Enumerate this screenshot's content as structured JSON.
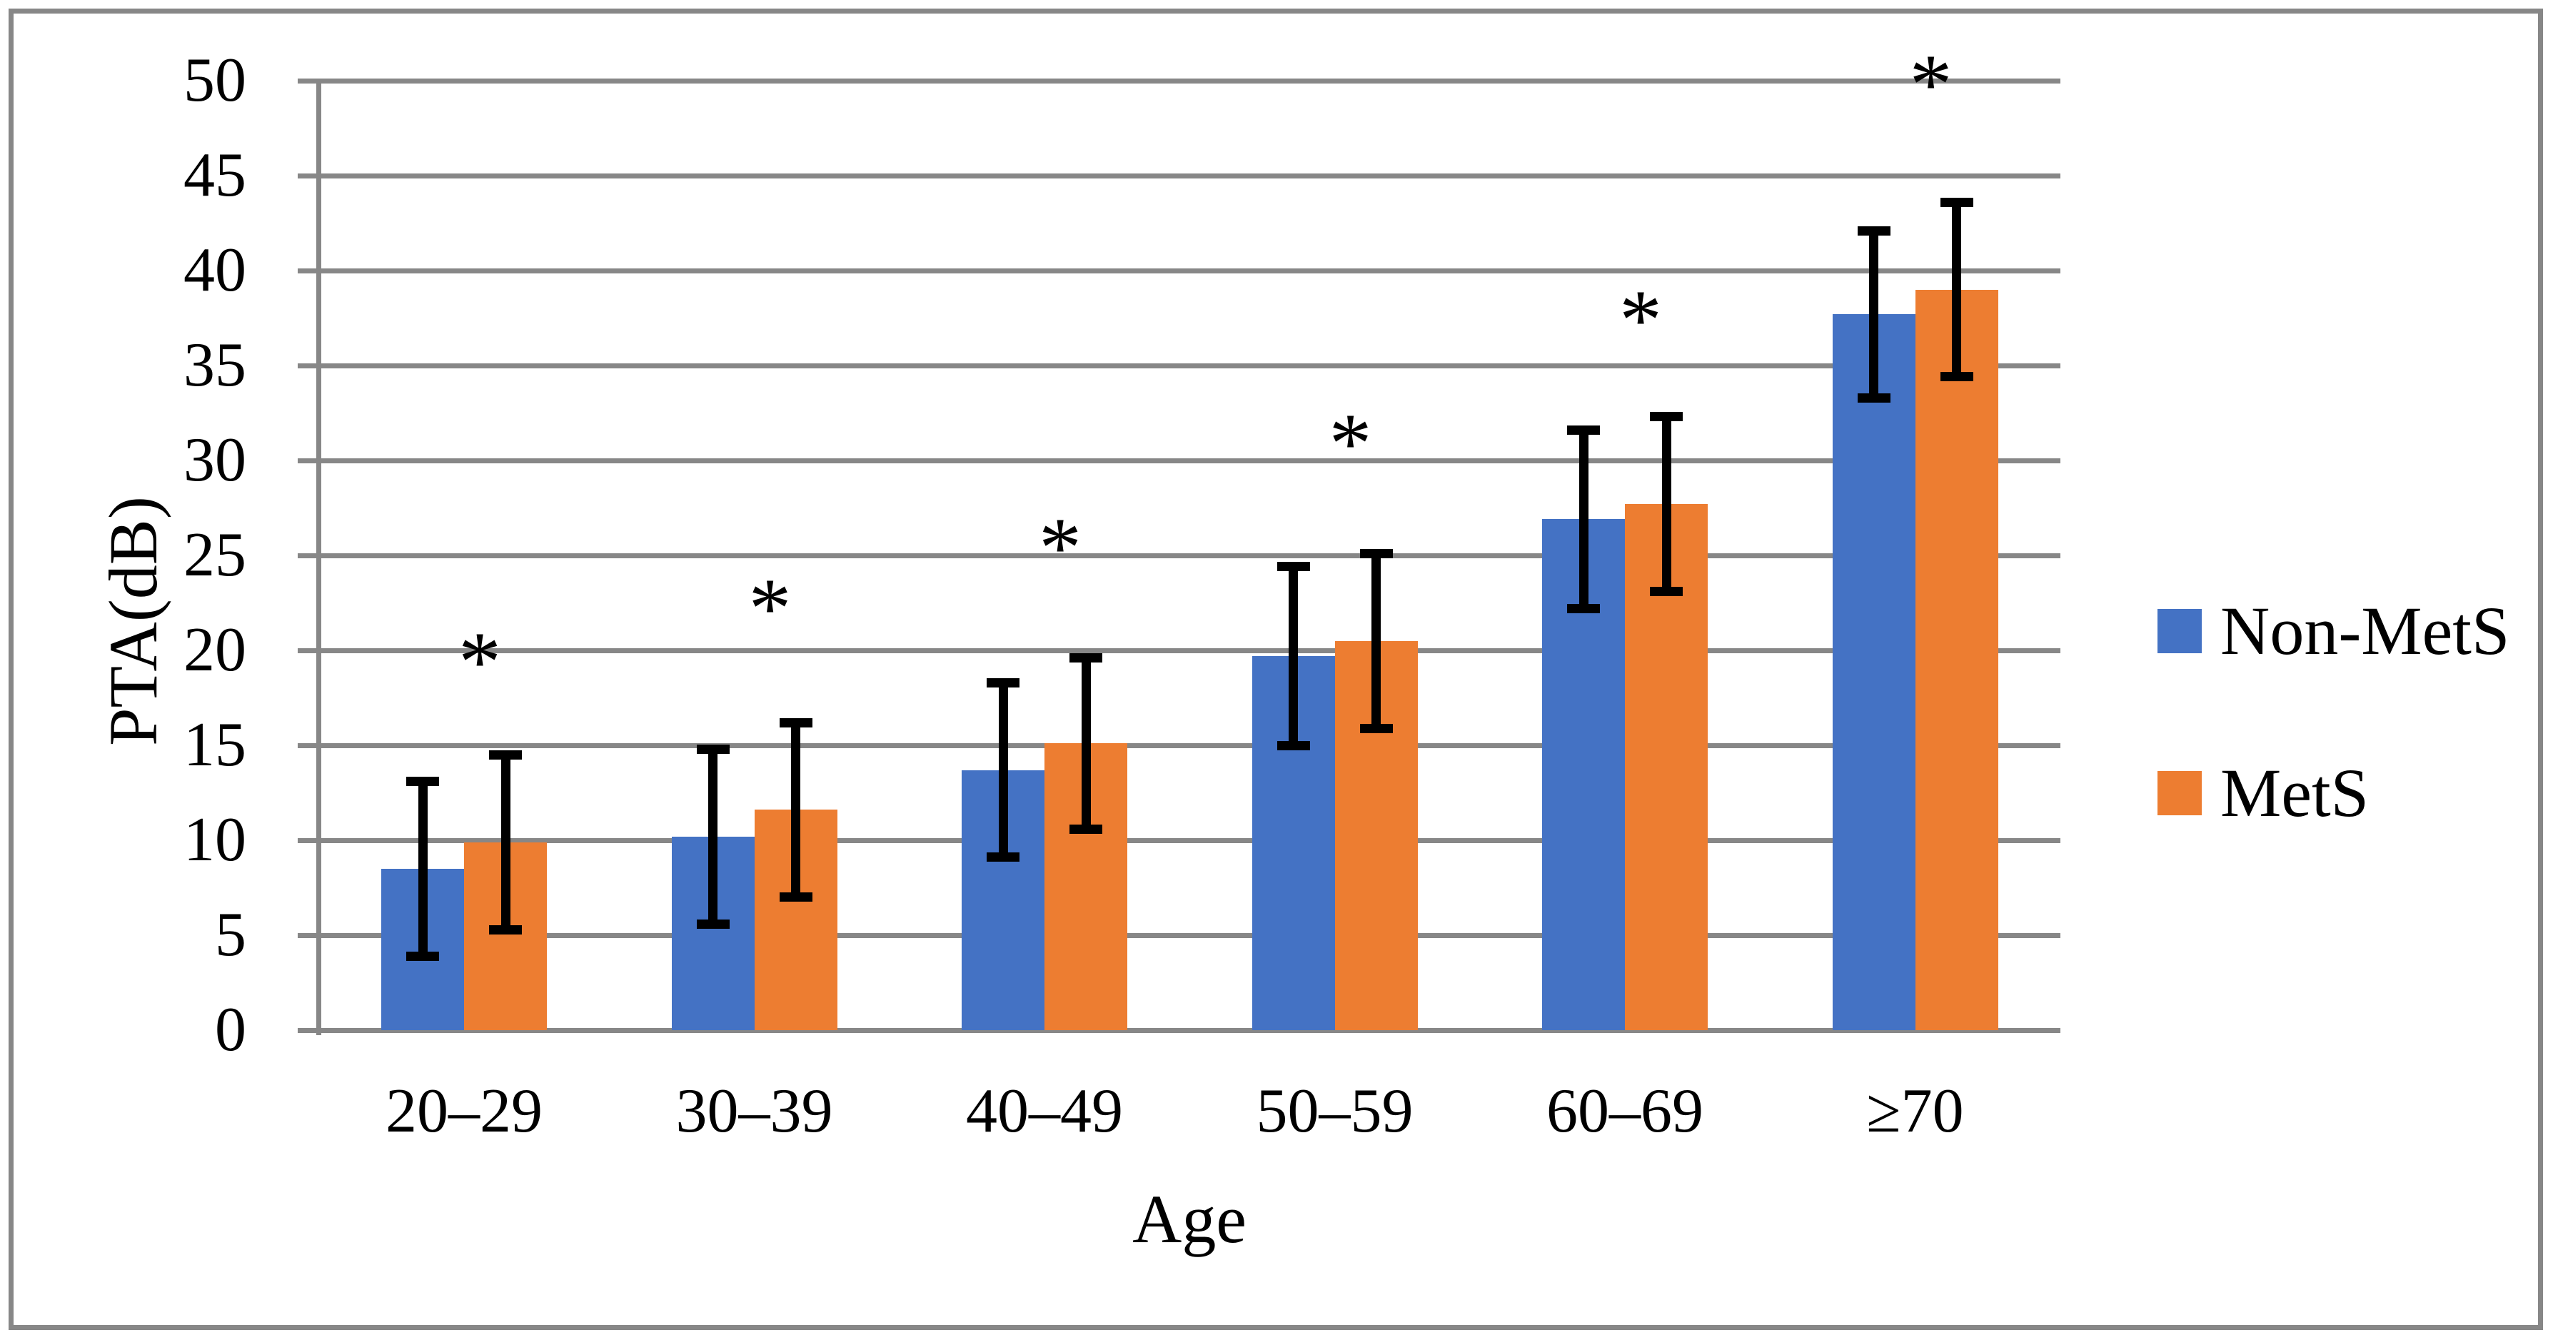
{
  "figure": {
    "background_color": "#ffffff",
    "border_color": "#878787",
    "gridline_color": "#878787",
    "error_bar_color": "#000000"
  },
  "chart_data": {
    "type": "bar",
    "title": "",
    "categories": [
      "20–29",
      "30–39",
      "40–49",
      "50–59",
      "60–69",
      "≥70"
    ],
    "series": [
      {
        "name": "Non-MetS",
        "color": "#4472C4",
        "values": [
          8.5,
          10.2,
          13.7,
          19.7,
          26.9,
          37.7
        ],
        "errors": [
          4.6,
          4.6,
          4.6,
          4.7,
          4.7,
          4.4
        ]
      },
      {
        "name": "MetS",
        "color": "#ED7D31",
        "values": [
          9.9,
          11.6,
          15.1,
          20.5,
          27.7,
          39.0
        ],
        "errors": [
          4.6,
          4.6,
          4.5,
          4.6,
          4.6,
          4.6
        ]
      }
    ],
    "significance_markers": {
      "symbol": "*",
      "y_values": [
        19.4,
        22.2,
        25.4,
        30.9,
        37.4,
        49.8
      ]
    },
    "xlabel": "Age",
    "ylabel": "PTA(dB)",
    "ylim": [
      0,
      50
    ],
    "yticks": [
      0,
      5,
      10,
      15,
      20,
      25,
      30,
      35,
      40,
      45,
      50
    ],
    "grid": "horizontal-major",
    "legend_position": "right"
  },
  "legend": {
    "items": [
      {
        "label": "Non-MetS",
        "color": "#4472C4"
      },
      {
        "label": "MetS",
        "color": "#ED7D31"
      }
    ]
  }
}
